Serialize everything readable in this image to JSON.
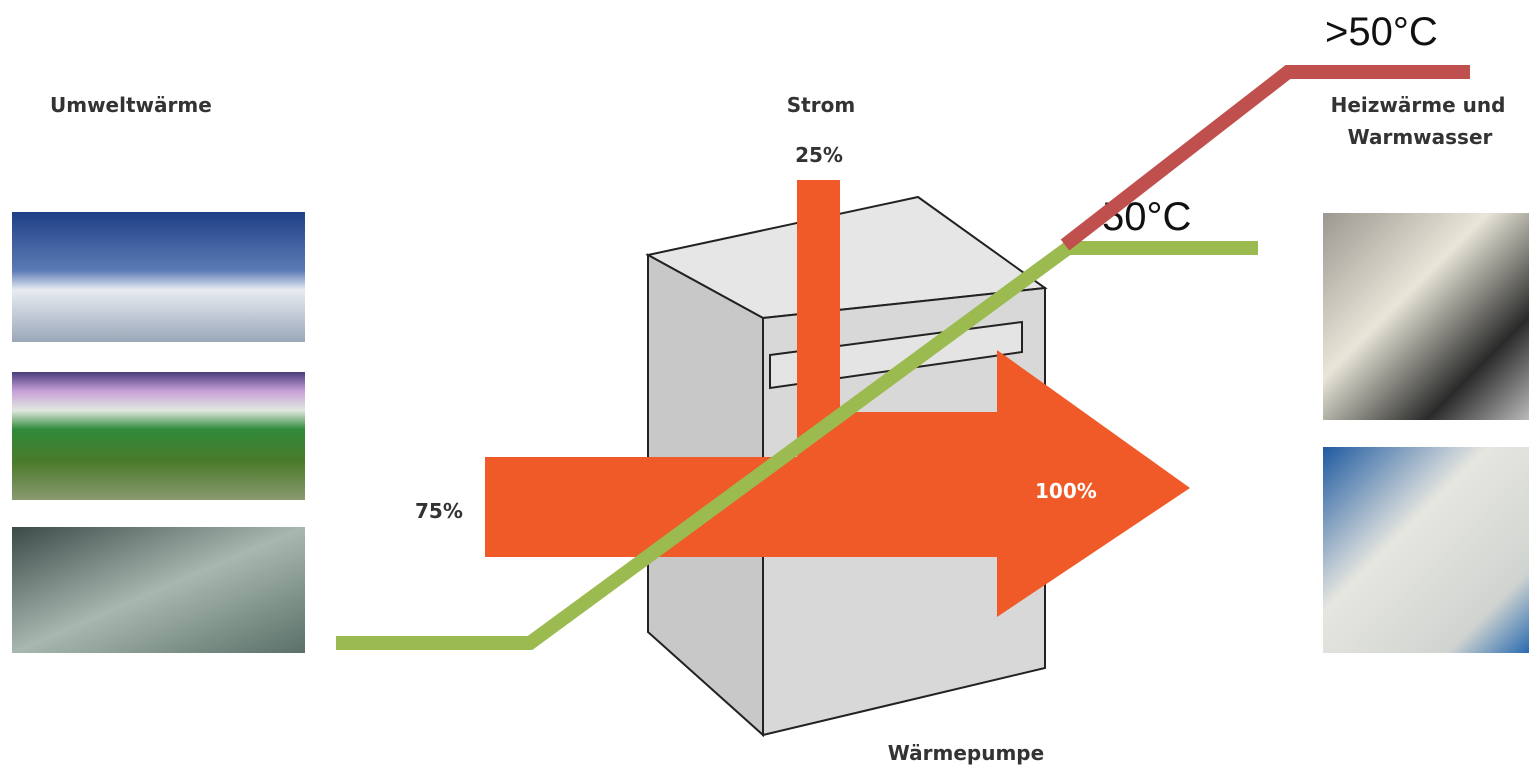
{
  "labels": {
    "source": "Umweltwärme",
    "power": "Strom",
    "power_share": "25%",
    "output_line1": "Heizwärme und",
    "output_line2": "Warmwasser",
    "env_share": "75%",
    "total": "100%",
    "device": "Wärmepumpe",
    "temp_high": ">50°C",
    "temp_low": "50°C"
  }
}
